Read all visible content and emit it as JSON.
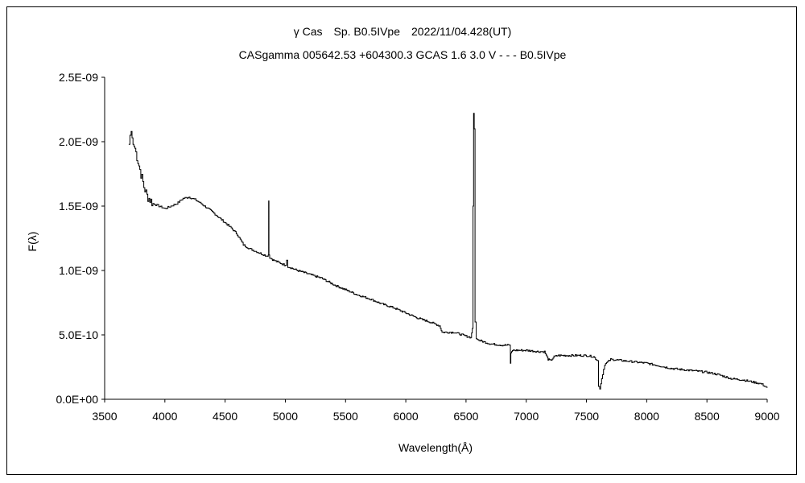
{
  "chart_data": {
    "type": "line",
    "title": "γ Cas　Sp. B0.5IVpe　2022/11/04.428(UT)",
    "subtitle": "CASgamma 005642.53 +604300.3 GCAS 1.6 3.0 V - - - B0.5IVpe",
    "xlabel": "Wavelength(Å)",
    "ylabel": "F(λ)",
    "xlim": [
      3500,
      9000
    ],
    "ylim": [
      0,
      2.5e-09
    ],
    "xticks": [
      "3500",
      "4000",
      "4500",
      "5000",
      "5500",
      "6000",
      "6500",
      "7000",
      "7500",
      "8000",
      "8500",
      "9000"
    ],
    "yticks": [
      "0.0E+00",
      "5.0E-10",
      "1.0E-09",
      "1.5E-09",
      "2.0E-09",
      "2.5E-09"
    ],
    "grid": false,
    "series": [
      {
        "name": "spectrum",
        "unit_scale": 1e-09,
        "x": [
          3700,
          3710,
          3720,
          3735,
          3750,
          3775,
          3800,
          3825,
          3850,
          3875,
          3900,
          3950,
          4000,
          4050,
          4100,
          4150,
          4200,
          4250,
          4300,
          4400,
          4500,
          4550,
          4600,
          4650,
          4700,
          4800,
          4850,
          4858,
          4861,
          4864,
          4870,
          4900,
          4950,
          5000,
          5010,
          5020,
          5100,
          5200,
          5300,
          5400,
          5500,
          5600,
          5700,
          5800,
          5900,
          6000,
          6100,
          6200,
          6280,
          6300,
          6400,
          6500,
          6540,
          6552,
          6558,
          6563,
          6568,
          6575,
          6585,
          6600,
          6700,
          6800,
          6860,
          6868,
          6872,
          6885,
          6950,
          7000,
          7100,
          7150,
          7180,
          7200,
          7230,
          7260,
          7300,
          7400,
          7500,
          7560,
          7590,
          7600,
          7610,
          7625,
          7650,
          7700,
          7800,
          7900,
          8000,
          8100,
          8200,
          8300,
          8400,
          8500,
          8600,
          8700,
          8800,
          8900,
          8950,
          9000
        ],
        "y": [
          1.98,
          2.05,
          2.08,
          1.98,
          1.95,
          1.85,
          1.75,
          1.65,
          1.58,
          1.55,
          1.52,
          1.5,
          1.48,
          1.5,
          1.52,
          1.56,
          1.57,
          1.55,
          1.52,
          1.45,
          1.37,
          1.33,
          1.28,
          1.2,
          1.17,
          1.13,
          1.11,
          1.12,
          1.54,
          1.12,
          1.1,
          1.08,
          1.06,
          1.04,
          1.08,
          1.03,
          1.0,
          0.97,
          0.94,
          0.89,
          0.85,
          0.81,
          0.78,
          0.74,
          0.71,
          0.67,
          0.63,
          0.6,
          0.57,
          0.52,
          0.52,
          0.49,
          0.48,
          0.55,
          1.5,
          2.22,
          2.1,
          0.6,
          0.47,
          0.46,
          0.43,
          0.42,
          0.42,
          0.28,
          0.36,
          0.38,
          0.38,
          0.38,
          0.37,
          0.37,
          0.31,
          0.3,
          0.33,
          0.34,
          0.34,
          0.34,
          0.34,
          0.33,
          0.3,
          0.1,
          0.08,
          0.16,
          0.27,
          0.31,
          0.3,
          0.29,
          0.28,
          0.26,
          0.24,
          0.23,
          0.22,
          0.21,
          0.19,
          0.16,
          0.15,
          0.13,
          0.12,
          0.09
        ]
      }
    ]
  }
}
